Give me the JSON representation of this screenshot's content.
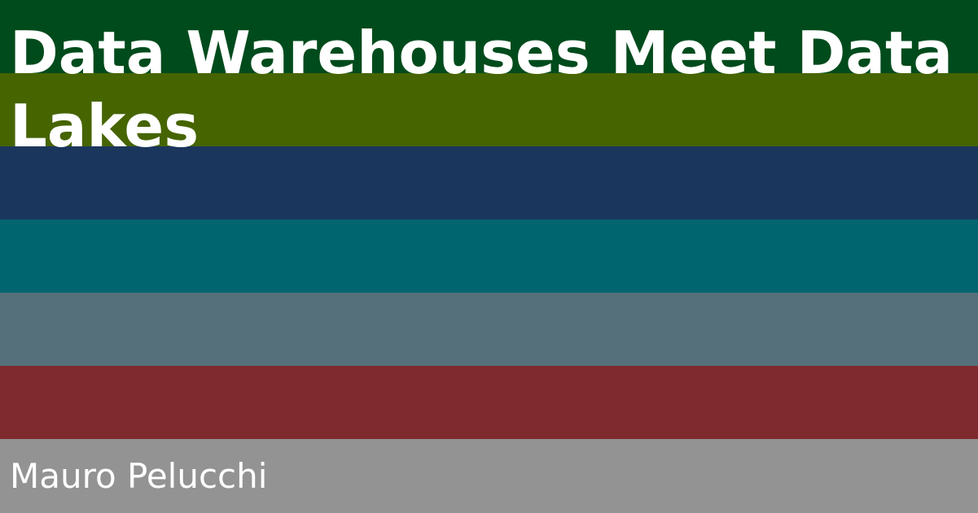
{
  "title": "Data Warehouses Meet Data Lakes",
  "author": "Mauro Pelucchi",
  "stripe_colors": [
    "#004b1c",
    "#466400",
    "#1b365c",
    "#00656f",
    "#556f7b",
    "#7e2a2f",
    "#939393"
  ]
}
